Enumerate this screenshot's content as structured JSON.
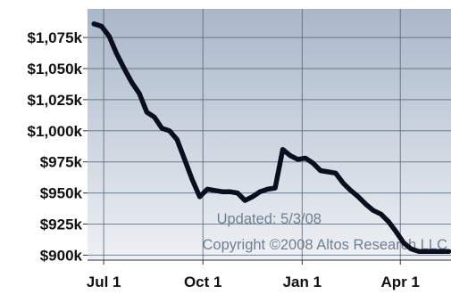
{
  "chart_data": {
    "type": "line",
    "title": "",
    "xlabel": "",
    "ylabel": "",
    "x_tick_labels": [
      "Jul 1",
      "Oct 1",
      "Jan 1",
      "Apr 1"
    ],
    "y_tick_labels": [
      "$1,075k",
      "$1,050k",
      "$1,025k",
      "$1,000k",
      "$975k",
      "$950k",
      "$925k",
      "$900k"
    ],
    "y_tick_values": [
      1075,
      1050,
      1025,
      1000,
      975,
      950,
      925,
      900
    ],
    "ylim": [
      896,
      1098
    ],
    "xlim": [
      "2007-06-16",
      "2008-05-18"
    ],
    "grid": true,
    "line_color": "#0a0f1e",
    "background_gradient": [
      "#a9b7c9",
      "#eef1f5"
    ],
    "series": [
      {
        "x": [
          "2007-06-22",
          "2007-06-29",
          "2007-07-06",
          "2007-07-13",
          "2007-07-20",
          "2007-07-27",
          "2007-08-03",
          "2007-08-10",
          "2007-08-17",
          "2007-08-24",
          "2007-08-31",
          "2007-09-07",
          "2007-09-14",
          "2007-09-21",
          "2007-09-28",
          "2007-10-05",
          "2007-10-12",
          "2007-10-19",
          "2007-10-26",
          "2007-11-02",
          "2007-11-09",
          "2007-11-16",
          "2007-11-23",
          "2007-11-30",
          "2007-12-07",
          "2007-12-14",
          "2007-12-21",
          "2007-12-28",
          "2008-01-04",
          "2008-01-11",
          "2008-01-18",
          "2008-01-25",
          "2008-02-01",
          "2008-02-08",
          "2008-02-15",
          "2008-02-22",
          "2008-02-29",
          "2008-03-07",
          "2008-03-14",
          "2008-03-21",
          "2008-03-28",
          "2008-04-04",
          "2008-04-11",
          "2008-04-18",
          "2008-04-25",
          "2008-05-02",
          "2008-05-09",
          "2008-05-16"
        ],
        "y": [
          1086,
          1084,
          1076,
          1062,
          1050,
          1039,
          1030,
          1015,
          1011,
          1002,
          1000,
          993,
          977,
          961,
          947,
          953,
          952,
          951,
          951,
          950,
          944,
          947,
          951,
          953,
          954,
          985,
          980,
          977,
          978,
          974,
          968,
          967,
          966,
          958,
          952,
          947,
          941,
          936,
          933,
          927,
          919,
          910,
          905,
          903,
          903,
          903,
          903,
          903
        ]
      }
    ],
    "annotations": [
      "Updated: 5/3/08",
      "Copyright ©2008 Altos Research LLC"
    ]
  }
}
